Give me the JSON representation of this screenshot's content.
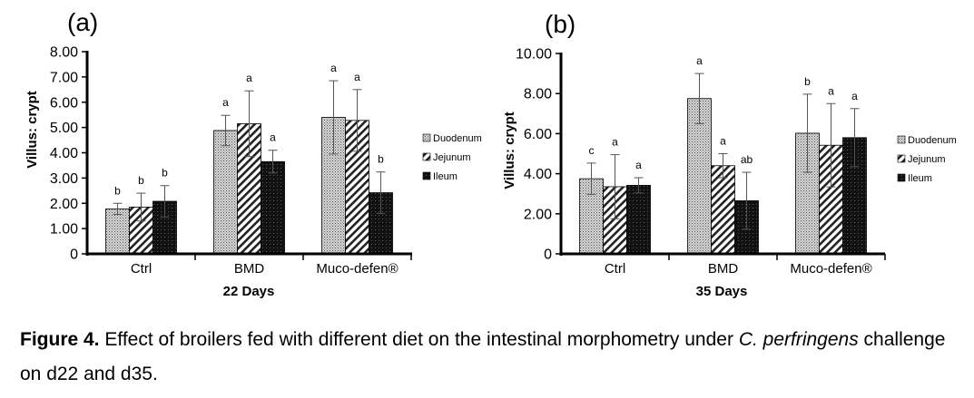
{
  "legend": {
    "series": [
      "Duodenum",
      "Jejunum",
      "Ileum"
    ]
  },
  "caption": {
    "label": "Figure 4.",
    "text_before": " Effect of broilers fed with different diet on the intestinal morphometry under ",
    "species": "C. perfringens",
    "text_after": " challenge on d22 and d35."
  },
  "chart_data": [
    {
      "type": "bar",
      "panel_label": "(a)",
      "title": "",
      "xlabel": "22 Days",
      "ylabel": "Villus: crypt",
      "ylim": [
        0,
        8
      ],
      "yticks": [
        "0",
        "1.00",
        "2.00",
        "3.00",
        "4.00",
        "5.00",
        "6.00",
        "7.00",
        "8.00"
      ],
      "categories": [
        "Ctrl",
        "BMD",
        "Muco-defen®"
      ],
      "series": [
        {
          "name": "Duodenum",
          "values": [
            1.78,
            4.88,
            5.4
          ],
          "errors": [
            0.22,
            0.6,
            1.45
          ],
          "letters": [
            "b",
            "a",
            "a"
          ]
        },
        {
          "name": "Jejunum",
          "values": [
            1.85,
            5.15,
            5.28
          ],
          "errors": [
            0.55,
            1.3,
            1.22
          ],
          "letters": [
            "b",
            "a",
            "a"
          ]
        },
        {
          "name": "Ileum",
          "values": [
            2.08,
            3.65,
            2.42
          ],
          "errors": [
            0.62,
            0.45,
            0.82
          ],
          "letters": [
            "b",
            "a",
            "b"
          ]
        }
      ],
      "legend_position": "right",
      "grid": false
    },
    {
      "type": "bar",
      "panel_label": "(b)",
      "title": "",
      "xlabel": "35 Days",
      "ylabel": "Villus: crypt",
      "ylim": [
        0,
        10
      ],
      "yticks": [
        "0",
        "2.00",
        "4.00",
        "6.00",
        "8.00",
        "10.00"
      ],
      "categories": [
        "Ctrl",
        "BMD",
        "Muco-defen®"
      ],
      "series": [
        {
          "name": "Duodenum",
          "values": [
            3.75,
            7.75,
            6.02
          ],
          "errors": [
            0.78,
            1.25,
            1.95
          ],
          "letters": [
            "c",
            "a",
            "b"
          ]
        },
        {
          "name": "Jejunum",
          "values": [
            3.35,
            4.4,
            5.42
          ],
          "errors": [
            1.6,
            0.6,
            2.08
          ],
          "letters": [
            "a",
            "a",
            "a"
          ]
        },
        {
          "name": "Ileum",
          "values": [
            3.42,
            2.65,
            5.8
          ],
          "errors": [
            0.38,
            1.42,
            1.45
          ],
          "letters": [
            "a",
            "ab",
            "a"
          ]
        }
      ],
      "legend_position": "right",
      "grid": false
    }
  ]
}
